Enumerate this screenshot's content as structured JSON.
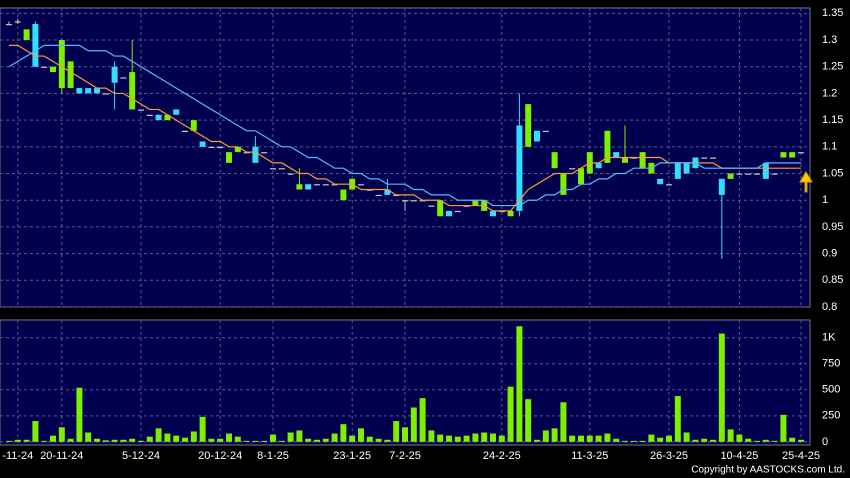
{
  "chart_data": [
    {
      "type": "candlestick",
      "categories": [
        null,
        "-11-24",
        null,
        null,
        null,
        null,
        "20-11-24",
        null,
        null,
        null,
        null,
        null,
        null,
        null,
        null,
        "5-12-24",
        null,
        null,
        null,
        null,
        null,
        null,
        null,
        null,
        "20-12-24",
        null,
        null,
        null,
        null,
        null,
        "8-1-25",
        null,
        null,
        null,
        null,
        null,
        null,
        null,
        null,
        "23-1-25",
        null,
        null,
        null,
        null,
        null,
        "7-2-25",
        null,
        null,
        null,
        null,
        null,
        null,
        null,
        null,
        null,
        null,
        "24-2-25",
        null,
        null,
        null,
        null,
        null,
        null,
        null,
        null,
        null,
        "11-3-25",
        null,
        null,
        null,
        null,
        null,
        null,
        null,
        null,
        "26-3-25",
        null,
        null,
        null,
        null,
        null,
        null,
        null,
        "10-4-25",
        null,
        null,
        null,
        null,
        null,
        null,
        "25-4-25"
      ],
      "open": [
        1.33,
        1.335,
        1.3,
        1.33,
        1.25,
        1.24,
        1.21,
        1.21,
        1.21,
        1.21,
        1.21,
        1.2,
        1.25,
        1.23,
        1.17,
        1.17,
        1.16,
        1.16,
        1.15,
        1.17,
        1.13,
        1.13,
        1.11,
        1.1,
        1.1,
        1.07,
        1.09,
        1.09,
        1.1,
        1.09,
        1.06,
        1.06,
        1.05,
        1.02,
        1.03,
        1.03,
        1.03,
        1.03,
        1.0,
        1.02,
        1.03,
        1.02,
        1.01,
        1.02,
        1.01,
        1.0,
        1.0,
        1.0,
        0.99,
        0.97,
        0.98,
        0.98,
        0.99,
        0.99,
        0.98,
        0.98,
        0.98,
        0.97,
        1.14,
        1.1,
        1.13,
        1.13,
        1.06,
        1.01,
        1.06,
        1.03,
        1.05,
        1.07,
        1.07,
        1.09,
        1.07,
        1.08,
        1.06,
        1.05,
        1.04,
        1.03,
        1.07,
        1.07,
        1.08,
        1.08,
        1.08,
        1.04,
        1.04,
        1.05,
        1.05,
        1.05,
        1.07,
        1.05,
        1.08,
        1.08,
        1.09
      ],
      "high": [
        1.335,
        1.34,
        1.32,
        1.335,
        1.25,
        1.25,
        1.3,
        1.26,
        1.21,
        1.21,
        1.21,
        1.2,
        1.26,
        1.23,
        1.3,
        1.17,
        1.16,
        1.16,
        1.16,
        1.17,
        1.13,
        1.15,
        1.11,
        1.1,
        1.1,
        1.09,
        1.1,
        1.09,
        1.12,
        1.09,
        1.06,
        1.06,
        1.05,
        1.06,
        1.03,
        1.03,
        1.03,
        1.03,
        1.02,
        1.04,
        1.03,
        1.02,
        1.01,
        1.04,
        1.01,
        1.0,
        1.0,
        1.0,
        0.99,
        1.0,
        0.98,
        0.98,
        0.99,
        1.0,
        1.0,
        0.98,
        0.98,
        0.98,
        1.2,
        1.18,
        1.13,
        1.13,
        1.09,
        1.05,
        1.06,
        1.06,
        1.09,
        1.07,
        1.13,
        1.09,
        1.14,
        1.08,
        1.09,
        1.07,
        1.04,
        1.03,
        1.07,
        1.07,
        1.08,
        1.08,
        1.08,
        1.04,
        1.05,
        1.05,
        1.05,
        1.05,
        1.07,
        1.05,
        1.09,
        1.09,
        1.09
      ],
      "low": [
        1.33,
        1.33,
        1.3,
        1.25,
        1.25,
        1.24,
        1.2,
        1.21,
        1.2,
        1.2,
        1.2,
        1.2,
        1.17,
        1.23,
        1.17,
        1.17,
        1.16,
        1.15,
        1.15,
        1.16,
        1.13,
        1.13,
        1.1,
        1.1,
        1.1,
        1.07,
        1.09,
        1.09,
        1.07,
        1.09,
        1.06,
        1.06,
        1.05,
        1.02,
        1.02,
        1.03,
        1.03,
        1.03,
        1.0,
        1.02,
        1.03,
        1.02,
        1.01,
        1.01,
        1.01,
        0.98,
        1.0,
        1.0,
        0.99,
        0.97,
        0.97,
        0.98,
        0.99,
        0.99,
        0.98,
        0.97,
        0.98,
        0.97,
        0.97,
        1.1,
        1.11,
        1.13,
        1.06,
        1.01,
        1.06,
        1.03,
        1.05,
        1.06,
        1.07,
        1.08,
        1.07,
        1.08,
        1.06,
        1.05,
        1.03,
        1.03,
        1.04,
        1.05,
        1.06,
        1.08,
        1.08,
        0.89,
        1.04,
        1.05,
        1.05,
        1.05,
        1.04,
        1.05,
        1.08,
        1.08,
        1.09
      ],
      "close": [
        1.33,
        1.335,
        1.32,
        1.25,
        1.25,
        1.25,
        1.3,
        1.26,
        1.2,
        1.2,
        1.2,
        1.2,
        1.22,
        1.23,
        1.24,
        1.17,
        1.16,
        1.15,
        1.16,
        1.16,
        1.13,
        1.15,
        1.1,
        1.1,
        1.1,
        1.09,
        1.1,
        1.09,
        1.07,
        1.09,
        1.06,
        1.06,
        1.05,
        1.03,
        1.02,
        1.03,
        1.03,
        1.03,
        1.02,
        1.04,
        1.03,
        1.02,
        1.01,
        1.01,
        1.01,
        1.0,
        1.0,
        1.0,
        0.99,
        1.0,
        0.97,
        0.98,
        0.99,
        1.0,
        1.0,
        0.97,
        0.98,
        0.98,
        0.98,
        1.18,
        1.11,
        1.13,
        1.09,
        1.05,
        1.06,
        1.06,
        1.09,
        1.06,
        1.13,
        1.08,
        1.08,
        1.08,
        1.09,
        1.07,
        1.03,
        1.03,
        1.04,
        1.05,
        1.06,
        1.08,
        1.08,
        1.01,
        1.05,
        1.05,
        1.05,
        1.05,
        1.04,
        1.05,
        1.09,
        1.09,
        1.09
      ],
      "up_color": "#7cf000",
      "down_color": "#33ddff",
      "doji_color": "#c8c8c8",
      "lines": [
        {
          "color": "#ff9933",
          "values": [
            1.29,
            1.29,
            1.28,
            1.27,
            1.27,
            1.26,
            1.25,
            1.24,
            1.23,
            1.22,
            1.21,
            1.21,
            1.2,
            1.2,
            1.19,
            1.18,
            1.17,
            1.17,
            1.16,
            1.15,
            1.14,
            1.13,
            1.12,
            1.11,
            1.11,
            1.1,
            1.1,
            1.09,
            1.09,
            1.08,
            1.07,
            1.07,
            1.06,
            1.05,
            1.05,
            1.04,
            1.04,
            1.03,
            1.03,
            1.03,
            1.02,
            1.02,
            1.02,
            1.02,
            1.01,
            1.01,
            1.01,
            1.0,
            1.0,
            1.0,
            0.99,
            0.99,
            0.99,
            0.99,
            0.99,
            0.98,
            0.98,
            0.98,
            1.0,
            1.02,
            1.03,
            1.04,
            1.05,
            1.05,
            1.05,
            1.06,
            1.07,
            1.07,
            1.08,
            1.08,
            1.08,
            1.08,
            1.08,
            1.08,
            1.08,
            1.07,
            1.07,
            1.07,
            1.07,
            1.07,
            1.07,
            1.06,
            1.06,
            1.06,
            1.06,
            1.06,
            1.06,
            1.06,
            1.06,
            1.06,
            1.06
          ]
        },
        {
          "color": "#55bbff",
          "values": [
            1.25,
            1.26,
            1.27,
            1.28,
            1.29,
            1.29,
            1.29,
            1.29,
            1.29,
            1.28,
            1.28,
            1.28,
            1.27,
            1.27,
            1.26,
            1.25,
            1.24,
            1.23,
            1.22,
            1.21,
            1.2,
            1.19,
            1.18,
            1.17,
            1.16,
            1.15,
            1.14,
            1.13,
            1.13,
            1.12,
            1.11,
            1.1,
            1.1,
            1.09,
            1.08,
            1.08,
            1.07,
            1.06,
            1.06,
            1.05,
            1.05,
            1.04,
            1.04,
            1.03,
            1.03,
            1.03,
            1.02,
            1.02,
            1.01,
            1.01,
            1.01,
            1.0,
            1.0,
            1.0,
            1.0,
            0.99,
            0.99,
            0.99,
            0.99,
            1.0,
            1.0,
            1.01,
            1.01,
            1.02,
            1.02,
            1.03,
            1.03,
            1.04,
            1.04,
            1.05,
            1.05,
            1.06,
            1.06,
            1.06,
            1.07,
            1.07,
            1.07,
            1.07,
            1.07,
            1.06,
            1.06,
            1.06,
            1.06,
            1.06,
            1.06,
            1.06,
            1.07,
            1.07,
            1.07,
            1.07,
            1.07
          ]
        }
      ],
      "ylim": [
        0.8,
        1.36
      ],
      "yticks": [
        0.8,
        0.85,
        0.9,
        0.95,
        1,
        1.05,
        1.1,
        1.15,
        1.2,
        1.25,
        1.3,
        1.35
      ],
      "grid": true
    },
    {
      "type": "bar",
      "values": [
        10,
        20,
        20,
        200,
        10,
        60,
        140,
        30,
        520,
        90,
        30,
        15,
        20,
        20,
        30,
        10,
        50,
        130,
        80,
        60,
        40,
        100,
        240,
        30,
        30,
        80,
        50,
        10,
        10,
        10,
        70,
        10,
        90,
        110,
        30,
        20,
        30,
        80,
        170,
        60,
        130,
        50,
        30,
        20,
        200,
        140,
        330,
        420,
        110,
        70,
        60,
        50,
        60,
        80,
        90,
        80,
        60,
        530,
        1110,
        410,
        20,
        110,
        130,
        380,
        60,
        60,
        60,
        60,
        80,
        30,
        10,
        10,
        10,
        70,
        40,
        60,
        440,
        90,
        20,
        30,
        20,
        1040,
        120,
        70,
        30,
        10,
        20,
        10,
        260,
        40,
        20
      ],
      "color": "#7cf000",
      "ylim": [
        -30,
        1170
      ],
      "yticks": [
        0,
        250,
        500,
        750,
        {
          "value": 1000,
          "label": "1K"
        }
      ],
      "grid": true
    }
  ],
  "footer": "Copyright by AASTOCKS.com Ltd."
}
